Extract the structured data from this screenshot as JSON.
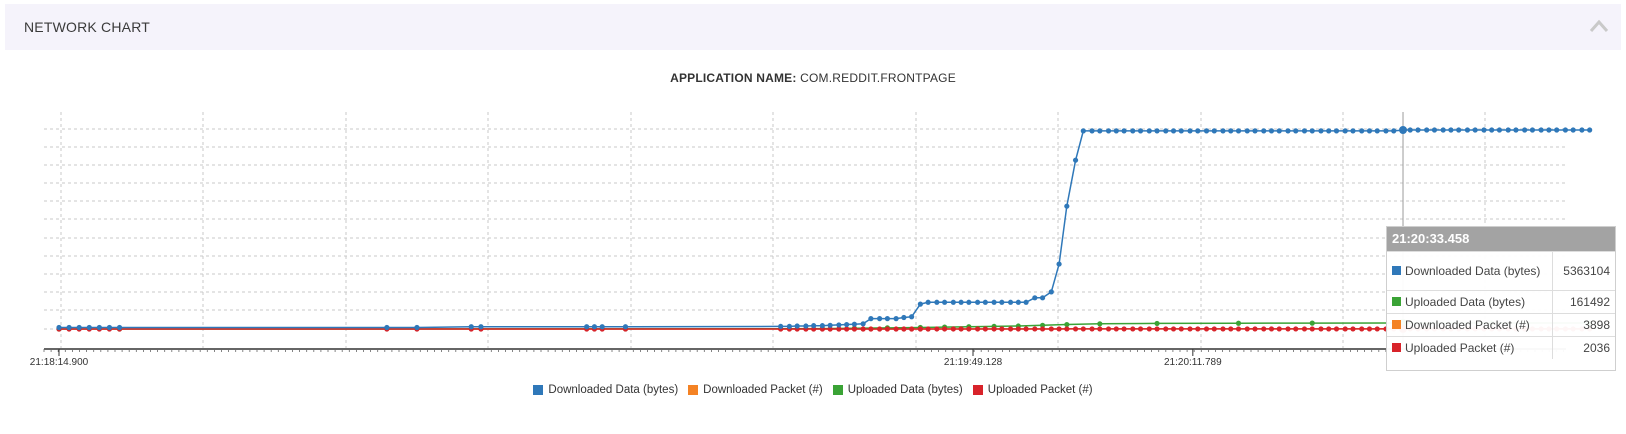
{
  "panel": {
    "title": "NETWORK CHART",
    "collapse_icon": "chevron-up-icon"
  },
  "app": {
    "label": "APPLICATION NAME:",
    "value": "COM.REDDIT.FRONTPAGE"
  },
  "chart_data": {
    "type": "line",
    "title": "",
    "xlabel": "",
    "ylabel": "",
    "x_tick_labels": [
      "21:18:14.900",
      "21:19:49.128",
      "21:20:11.789"
    ],
    "grid": true,
    "legend_position": "bottom-center",
    "series": [
      {
        "name": "Downloaded Data (bytes)",
        "color": "#2f78b9",
        "points": [
          [
            "21:18:14.900",
            40000
          ],
          [
            "21:18:15.940",
            40000
          ],
          [
            "21:18:16.980",
            40000
          ],
          [
            "21:18:18.020",
            40000
          ],
          [
            "21:18:19.060",
            40000
          ],
          [
            "21:18:20.100",
            40000
          ],
          [
            "21:18:21.140",
            40000
          ],
          [
            "21:18:48.700",
            40000
          ],
          [
            "21:18:51.800",
            40000
          ],
          [
            "21:18:57.400",
            60000
          ],
          [
            "21:18:58.400",
            60000
          ],
          [
            "21:19:09.300",
            60000
          ],
          [
            "21:19:10.100",
            60000
          ],
          [
            "21:19:10.900",
            60000
          ],
          [
            "21:19:13.300",
            60000
          ],
          [
            "21:19:29.300",
            70000
          ],
          [
            "21:19:30.200",
            70000
          ],
          [
            "21:19:31.000",
            80000
          ],
          [
            "21:19:31.900",
            80000
          ],
          [
            "21:19:32.700",
            90000
          ],
          [
            "21:19:33.600",
            90000
          ],
          [
            "21:19:34.400",
            100000
          ],
          [
            "21:19:35.300",
            110000
          ],
          [
            "21:19:36.100",
            120000
          ],
          [
            "21:19:36.900",
            130000
          ],
          [
            "21:19:37.800",
            140000
          ],
          [
            "21:19:38.600",
            280000
          ],
          [
            "21:19:39.500",
            280000
          ],
          [
            "21:19:40.300",
            280000
          ],
          [
            "21:19:41.200",
            280000
          ],
          [
            "21:19:42.000",
            310000
          ],
          [
            "21:19:42.800",
            330000
          ],
          [
            "21:19:43.700",
            670000
          ],
          [
            "21:19:44.500",
            720000
          ],
          [
            "21:19:45.400",
            720000
          ],
          [
            "21:19:46.200",
            720000
          ],
          [
            "21:19:47.100",
            720000
          ],
          [
            "21:19:47.900",
            720000
          ],
          [
            "21:19:48.700",
            720000
          ],
          [
            "21:19:49.600",
            720000
          ],
          [
            "21:19:50.400",
            720000
          ],
          [
            "21:19:51.300",
            720000
          ],
          [
            "21:19:52.100",
            720000
          ],
          [
            "21:19:53.000",
            720000
          ],
          [
            "21:19:53.800",
            720000
          ],
          [
            "21:19:54.600",
            720000
          ],
          [
            "21:19:55.500",
            840000
          ],
          [
            "21:19:56.300",
            840000
          ],
          [
            "21:19:57.200",
            1000000
          ],
          [
            "21:19:58.000",
            1750000
          ],
          [
            "21:19:58.800",
            3310000
          ],
          [
            "21:19:59.700",
            4550000
          ],
          [
            "21:20:00.500",
            5340000
          ],
          [
            "21:20:01.400",
            5340000
          ],
          [
            "21:20:02.200",
            5340000
          ],
          [
            "21:20:03.100",
            5340000
          ],
          [
            "21:20:03.900",
            5340000
          ],
          [
            "21:20:04.700",
            5340000
          ],
          [
            "21:20:05.600",
            5340000
          ],
          [
            "21:20:06.400",
            5340000
          ],
          [
            "21:20:07.300",
            5340000
          ],
          [
            "21:20:08.100",
            5340000
          ],
          [
            "21:20:09.000",
            5340000
          ],
          [
            "21:20:09.800",
            5340000
          ],
          [
            "21:20:10.600",
            5340000
          ],
          [
            "21:20:11.500",
            5340000
          ],
          [
            "21:20:12.300",
            5340000
          ],
          [
            "21:20:13.200",
            5340000
          ],
          [
            "21:20:14.000",
            5340000
          ],
          [
            "21:20:14.900",
            5340000
          ],
          [
            "21:20:15.700",
            5340000
          ],
          [
            "21:20:16.500",
            5340000
          ],
          [
            "21:20:17.400",
            5340000
          ],
          [
            "21:20:18.200",
            5340000
          ],
          [
            "21:20:19.100",
            5340000
          ],
          [
            "21:20:19.900",
            5340000
          ],
          [
            "21:20:20.700",
            5340000
          ],
          [
            "21:20:21.600",
            5340000
          ],
          [
            "21:20:22.400",
            5340000
          ],
          [
            "21:20:23.300",
            5340000
          ],
          [
            "21:20:24.100",
            5340000
          ],
          [
            "21:20:25.000",
            5340000
          ],
          [
            "21:20:25.800",
            5340000
          ],
          [
            "21:20:26.600",
            5340000
          ],
          [
            "21:20:27.500",
            5340000
          ],
          [
            "21:20:28.300",
            5340000
          ],
          [
            "21:20:29.200",
            5340000
          ],
          [
            "21:20:30.000",
            5340000
          ],
          [
            "21:20:30.800",
            5340000
          ],
          [
            "21:20:31.700",
            5340000
          ],
          [
            "21:20:32.500",
            5340000
          ],
          [
            "21:20:33.458",
            5363104
          ],
          [
            "21:20:34.200",
            5363104
          ],
          [
            "21:20:35.000",
            5363104
          ],
          [
            "21:20:35.900",
            5363104
          ],
          [
            "21:20:36.700",
            5363104
          ],
          [
            "21:20:37.600",
            5363104
          ],
          [
            "21:20:38.400",
            5363104
          ],
          [
            "21:20:39.200",
            5363104
          ],
          [
            "21:20:40.100",
            5363104
          ],
          [
            "21:20:40.900",
            5363104
          ],
          [
            "21:20:41.800",
            5363104
          ],
          [
            "21:20:42.600",
            5363104
          ],
          [
            "21:20:43.400",
            5363104
          ],
          [
            "21:20:44.300",
            5363104
          ],
          [
            "21:20:45.100",
            5363104
          ],
          [
            "21:20:46.000",
            5363104
          ],
          [
            "21:20:46.800",
            5363104
          ],
          [
            "21:20:47.700",
            5363104
          ],
          [
            "21:20:48.500",
            5363104
          ],
          [
            "21:20:49.300",
            5363104
          ],
          [
            "21:20:50.200",
            5363104
          ],
          [
            "21:20:51.000",
            5363104
          ],
          [
            "21:20:51.900",
            5363104
          ],
          [
            "21:20:52.700",
            5363104
          ]
        ]
      },
      {
        "name": "Downloaded Packet (#)",
        "color": "#f48224",
        "points": [
          [
            "21:18:14.900",
            0
          ],
          [
            "21:19:29.300",
            500
          ],
          [
            "21:20:00.500",
            3000
          ],
          [
            "21:20:33.458",
            3898
          ],
          [
            "21:20:52.700",
            3900
          ]
        ]
      },
      {
        "name": "Uploaded Data (bytes)",
        "color": "#3aa335",
        "points": [
          [
            "21:18:14.900",
            0
          ],
          [
            "21:18:21.140",
            0
          ],
          [
            "21:19:13.300",
            2000
          ],
          [
            "21:19:29.300",
            5000
          ],
          [
            "21:19:33.600",
            10000
          ],
          [
            "21:19:36.900",
            20000
          ],
          [
            "21:19:40.300",
            30000
          ],
          [
            "21:19:43.700",
            40000
          ],
          [
            "21:19:46.200",
            50000
          ],
          [
            "21:19:48.700",
            60000
          ],
          [
            "21:19:51.300",
            70000
          ],
          [
            "21:19:53.800",
            80000
          ],
          [
            "21:19:56.300",
            100000
          ],
          [
            "21:19:58.800",
            120000
          ],
          [
            "21:20:02.200",
            140000
          ],
          [
            "21:20:08.100",
            150000
          ],
          [
            "21:20:16.500",
            155000
          ],
          [
            "21:20:24.100",
            158000
          ],
          [
            "21:20:33.458",
            161492
          ],
          [
            "21:20:42.600",
            162000
          ],
          [
            "21:20:52.700",
            162000
          ]
        ]
      },
      {
        "name": "Uploaded Packet (#)",
        "color": "#d8232a",
        "points": [
          [
            "21:18:14.900",
            0
          ],
          [
            "21:18:15.940",
            0
          ],
          [
            "21:18:16.980",
            0
          ],
          [
            "21:18:18.020",
            0
          ],
          [
            "21:18:19.060",
            0
          ],
          [
            "21:18:20.100",
            0
          ],
          [
            "21:18:21.140",
            0
          ],
          [
            "21:18:48.700",
            0
          ],
          [
            "21:18:51.800",
            0
          ],
          [
            "21:18:57.400",
            0
          ],
          [
            "21:18:58.400",
            0
          ],
          [
            "21:19:09.300",
            0
          ],
          [
            "21:19:10.100",
            0
          ],
          [
            "21:19:10.900",
            0
          ],
          [
            "21:19:13.300",
            0
          ],
          [
            "21:19:29.300",
            100
          ],
          [
            "21:19:30.200",
            100
          ],
          [
            "21:19:31.000",
            100
          ],
          [
            "21:19:31.900",
            100
          ],
          [
            "21:19:32.700",
            150
          ],
          [
            "21:19:33.600",
            150
          ],
          [
            "21:19:34.400",
            200
          ],
          [
            "21:19:35.300",
            200
          ],
          [
            "21:19:36.100",
            250
          ],
          [
            "21:19:36.900",
            250
          ],
          [
            "21:19:37.800",
            300
          ],
          [
            "21:19:38.600",
            400
          ],
          [
            "21:19:39.500",
            400
          ],
          [
            "21:19:40.300",
            400
          ],
          [
            "21:19:41.200",
            450
          ],
          [
            "21:19:42.000",
            450
          ],
          [
            "21:19:42.800",
            500
          ],
          [
            "21:19:43.700",
            700
          ],
          [
            "21:19:44.500",
            700
          ],
          [
            "21:19:45.400",
            750
          ],
          [
            "21:19:46.200",
            750
          ],
          [
            "21:19:47.100",
            800
          ],
          [
            "21:19:47.900",
            800
          ],
          [
            "21:19:48.700",
            850
          ],
          [
            "21:19:49.600",
            850
          ],
          [
            "21:19:50.400",
            900
          ],
          [
            "21:19:51.300",
            900
          ],
          [
            "21:19:52.100",
            950
          ],
          [
            "21:19:53.000",
            950
          ],
          [
            "21:19:53.800",
            1000
          ],
          [
            "21:19:54.600",
            1000
          ],
          [
            "21:19:55.500",
            1100
          ],
          [
            "21:19:56.300",
            1150
          ],
          [
            "21:19:57.200",
            1200
          ],
          [
            "21:19:58.000",
            1300
          ],
          [
            "21:19:58.800",
            1500
          ],
          [
            "21:19:59.700",
            1700
          ],
          [
            "21:20:00.500",
            1900
          ],
          [
            "21:20:01.400",
            1900
          ],
          [
            "21:20:02.200",
            1900
          ],
          [
            "21:20:03.100",
            1950
          ],
          [
            "21:20:03.900",
            1950
          ],
          [
            "21:20:04.700",
            1950
          ],
          [
            "21:20:05.600",
            1950
          ],
          [
            "21:20:06.400",
            1950
          ],
          [
            "21:20:07.300",
            1980
          ],
          [
            "21:20:08.100",
            1980
          ],
          [
            "21:20:09.000",
            1980
          ],
          [
            "21:20:09.800",
            1980
          ],
          [
            "21:20:10.600",
            1980
          ],
          [
            "21:20:11.500",
            1990
          ],
          [
            "21:20:12.300",
            1990
          ],
          [
            "21:20:13.200",
            1990
          ],
          [
            "21:20:14.000",
            1990
          ],
          [
            "21:20:14.900",
            1990
          ],
          [
            "21:20:15.700",
            2000
          ],
          [
            "21:20:16.500",
            2000
          ],
          [
            "21:20:17.400",
            2000
          ],
          [
            "21:20:18.200",
            2000
          ],
          [
            "21:20:19.100",
            2000
          ],
          [
            "21:20:19.900",
            2010
          ],
          [
            "21:20:20.700",
            2010
          ],
          [
            "21:20:21.600",
            2010
          ],
          [
            "21:20:22.400",
            2010
          ],
          [
            "21:20:23.300",
            2010
          ],
          [
            "21:20:24.100",
            2020
          ],
          [
            "21:20:25.000",
            2020
          ],
          [
            "21:20:25.800",
            2020
          ],
          [
            "21:20:26.600",
            2020
          ],
          [
            "21:20:27.500",
            2020
          ],
          [
            "21:20:28.300",
            2030
          ],
          [
            "21:20:29.200",
            2030
          ],
          [
            "21:20:30.000",
            2030
          ],
          [
            "21:20:30.800",
            2030
          ],
          [
            "21:20:31.700",
            2030
          ],
          [
            "21:20:32.500",
            2030
          ],
          [
            "21:20:33.458",
            2036
          ],
          [
            "21:20:34.200",
            2036
          ],
          [
            "21:20:35.000",
            2036
          ],
          [
            "21:20:35.900",
            2036
          ],
          [
            "21:20:36.700",
            2036
          ],
          [
            "21:20:37.600",
            2036
          ],
          [
            "21:20:38.400",
            2036
          ],
          [
            "21:20:39.200",
            2036
          ],
          [
            "21:20:40.100",
            2036
          ],
          [
            "21:20:40.900",
            2036
          ],
          [
            "21:20:41.800",
            2036
          ],
          [
            "21:20:42.600",
            2036
          ],
          [
            "21:20:43.400",
            2036
          ],
          [
            "21:20:44.300",
            2036
          ],
          [
            "21:20:45.100",
            2036
          ],
          [
            "21:20:46.000",
            2036
          ],
          [
            "21:20:46.800",
            2036
          ],
          [
            "21:20:47.700",
            2036
          ],
          [
            "21:20:48.500",
            2036
          ],
          [
            "21:20:49.300",
            2036
          ],
          [
            "21:20:50.200",
            2036
          ],
          [
            "21:20:51.000",
            2036
          ],
          [
            "21:20:51.900",
            2036
          ],
          [
            "21:20:52.700",
            2036
          ]
        ]
      }
    ]
  },
  "legend": [
    {
      "label": "Downloaded Data (bytes)",
      "color": "#2f78b9"
    },
    {
      "label": "Downloaded Packet (#)",
      "color": "#f48224"
    },
    {
      "label": "Uploaded Data (bytes)",
      "color": "#3aa335"
    },
    {
      "label": "Uploaded Packet (#)",
      "color": "#d8232a"
    }
  ],
  "tooltip": {
    "time": "21:20:33.458",
    "rows": [
      {
        "label": "Downloaded Data (bytes)",
        "value": "5363104",
        "color": "#2f78b9"
      },
      {
        "label": "Uploaded Data (bytes)",
        "value": "161492",
        "color": "#3aa335"
      },
      {
        "label": "Downloaded Packet (#)",
        "value": "3898",
        "color": "#f48224"
      },
      {
        "label": "Uploaded Packet (#)",
        "value": "2036",
        "color": "#d8232a"
      }
    ]
  }
}
